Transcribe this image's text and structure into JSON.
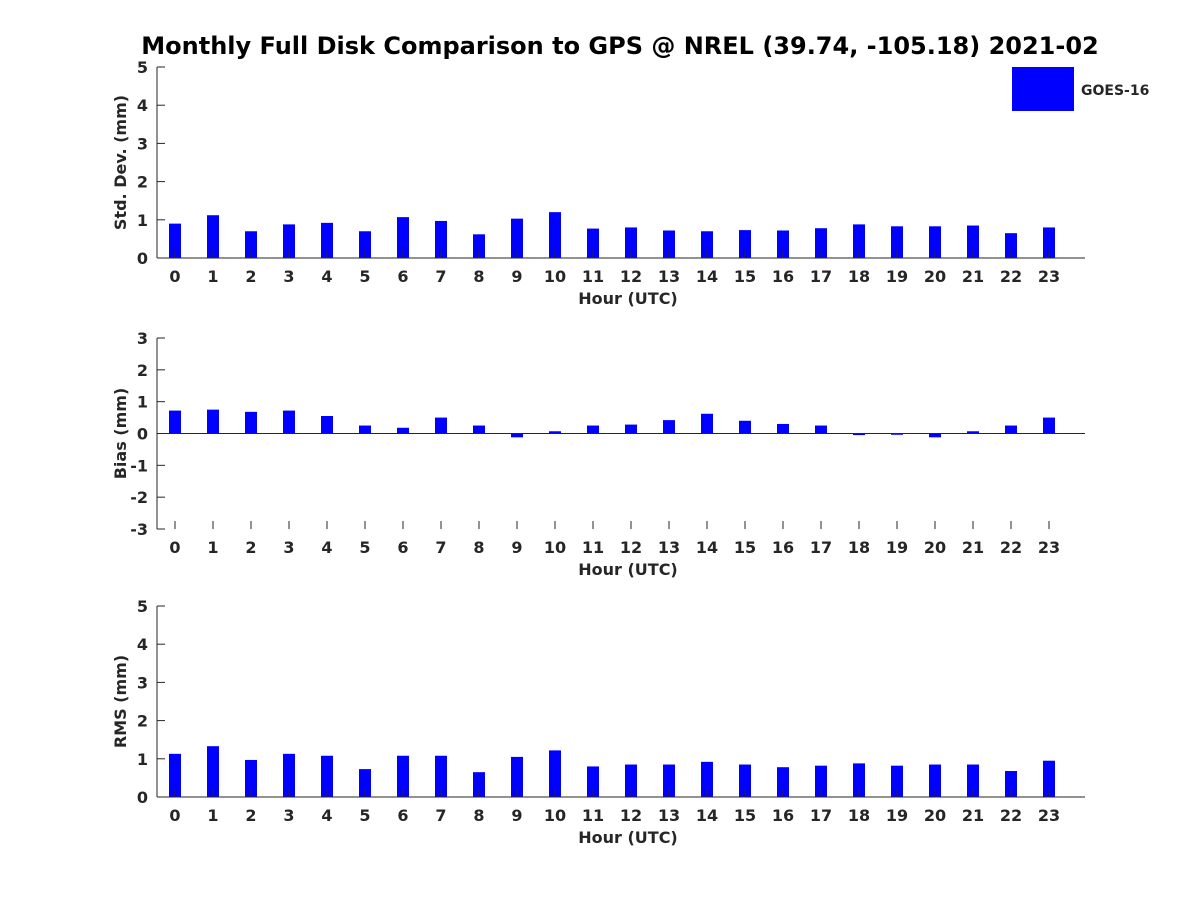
{
  "title": "Monthly Full Disk Comparison to GPS @ NREL (39.74, -105.18) 2021-02",
  "legend": {
    "label": "GOES-16",
    "color": "#0000ff",
    "placement": "top-right"
  },
  "chart_data": [
    {
      "type": "bar",
      "categories": [
        "0",
        "1",
        "2",
        "3",
        "4",
        "5",
        "6",
        "7",
        "8",
        "9",
        "10",
        "11",
        "12",
        "13",
        "14",
        "15",
        "16",
        "17",
        "18",
        "19",
        "20",
        "21",
        "22",
        "23"
      ],
      "series": [
        {
          "name": "GOES-16",
          "values": [
            0.9,
            1.12,
            0.7,
            0.88,
            0.92,
            0.7,
            1.07,
            0.97,
            0.62,
            1.03,
            1.2,
            0.77,
            0.8,
            0.72,
            0.7,
            0.73,
            0.72,
            0.78,
            0.88,
            0.83,
            0.83,
            0.85,
            0.65,
            0.8
          ]
        }
      ],
      "xlabel": "Hour (UTC)",
      "ylabel": "Std. Dev. (mm)",
      "ylim": [
        0,
        5
      ],
      "yticks": [
        "0",
        "1",
        "2",
        "3",
        "4",
        "5"
      ],
      "grid": false
    },
    {
      "type": "bar",
      "categories": [
        "0",
        "1",
        "2",
        "3",
        "4",
        "5",
        "6",
        "7",
        "8",
        "9",
        "10",
        "11",
        "12",
        "13",
        "14",
        "15",
        "16",
        "17",
        "18",
        "19",
        "20",
        "21",
        "22",
        "23"
      ],
      "series": [
        {
          "name": "GOES-16",
          "values": [
            0.72,
            0.75,
            0.68,
            0.72,
            0.55,
            0.25,
            0.18,
            0.5,
            0.25,
            -0.12,
            0.07,
            0.25,
            0.28,
            0.42,
            0.62,
            0.4,
            0.3,
            0.25,
            -0.05,
            -0.04,
            -0.12,
            0.07,
            0.25,
            0.5
          ]
        }
      ],
      "xlabel": "Hour (UTC)",
      "ylabel": "Bias (mm)",
      "ylim": [
        -3,
        3
      ],
      "yticks": [
        "-3",
        "-2",
        "-1",
        "0",
        "1",
        "2",
        "3"
      ],
      "grid": false
    },
    {
      "type": "bar",
      "categories": [
        "0",
        "1",
        "2",
        "3",
        "4",
        "5",
        "6",
        "7",
        "8",
        "9",
        "10",
        "11",
        "12",
        "13",
        "14",
        "15",
        "16",
        "17",
        "18",
        "19",
        "20",
        "21",
        "22",
        "23"
      ],
      "series": [
        {
          "name": "GOES-16",
          "values": [
            1.13,
            1.33,
            0.97,
            1.13,
            1.08,
            0.73,
            1.08,
            1.08,
            0.65,
            1.05,
            1.22,
            0.8,
            0.85,
            0.85,
            0.92,
            0.85,
            0.78,
            0.82,
            0.88,
            0.82,
            0.85,
            0.85,
            0.68,
            0.95
          ]
        }
      ],
      "xlabel": "Hour (UTC)",
      "ylabel": "RMS (mm)",
      "ylim": [
        0,
        5
      ],
      "yticks": [
        "0",
        "1",
        "2",
        "3",
        "4",
        "5"
      ],
      "grid": false
    }
  ]
}
